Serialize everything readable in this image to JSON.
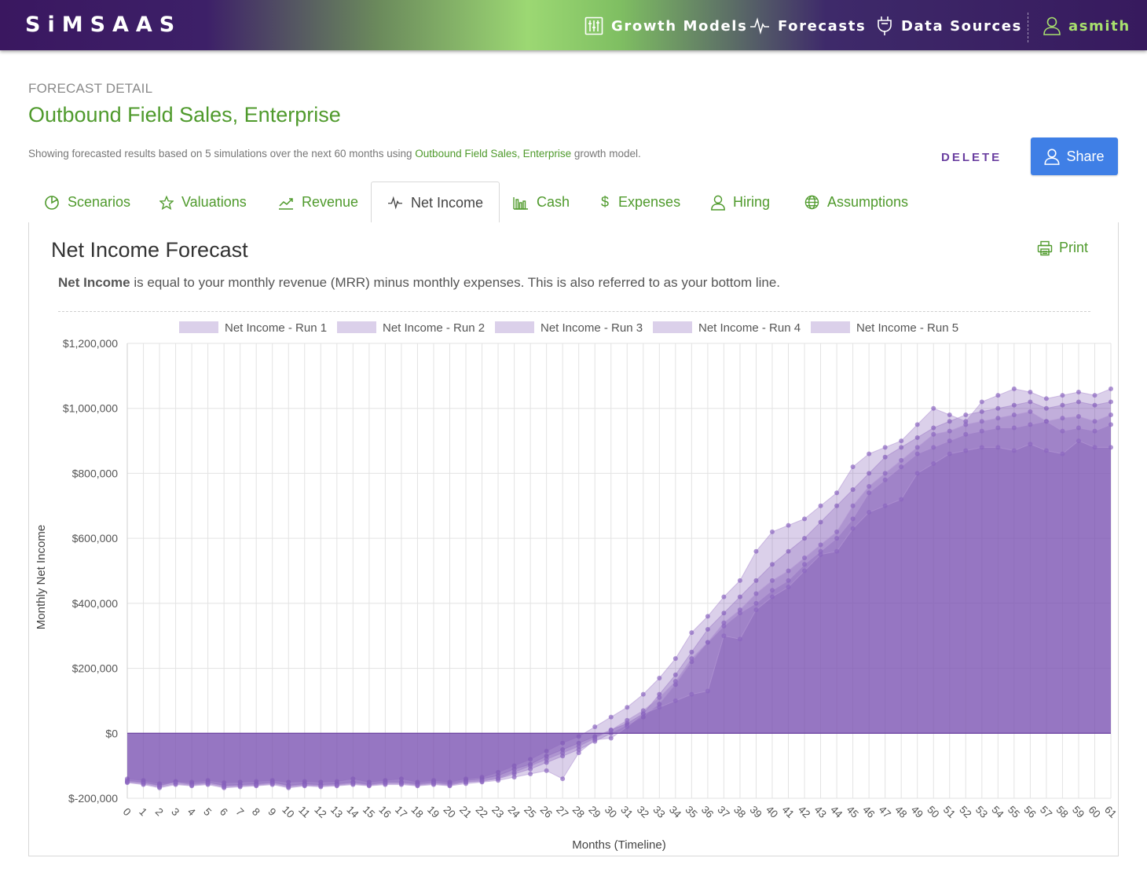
{
  "nav": {
    "logo": "SiMSAAS",
    "items": [
      {
        "label": "Growth Models",
        "icon": "sliders-icon"
      },
      {
        "label": "Forecasts",
        "icon": "pulse-icon"
      },
      {
        "label": "Data Sources",
        "icon": "plug-icon"
      }
    ],
    "user": "asmith"
  },
  "header": {
    "crumb": "FORECAST DETAIL",
    "title": "Outbound Field Sales, Enterprise",
    "subtitle_pre": "Showing forecasted results based on 5 simulations over the next 60 months using ",
    "subtitle_link": "Outbound Field Sales, Enterprise",
    "subtitle_post": " growth model.",
    "delete_label": "DELETE",
    "share_label": "Share"
  },
  "tabs": [
    {
      "label": "Scenarios",
      "icon": "pie-icon"
    },
    {
      "label": "Valuations",
      "icon": "star-icon"
    },
    {
      "label": "Revenue",
      "icon": "trend-icon"
    },
    {
      "label": "Net Income",
      "icon": "pulse-icon",
      "active": true
    },
    {
      "label": "Cash",
      "icon": "bar-chart-icon"
    },
    {
      "label": "Expenses",
      "icon": "dollar-icon"
    },
    {
      "label": "Hiring",
      "icon": "user-icon"
    },
    {
      "label": "Assumptions",
      "icon": "globe-icon"
    }
  ],
  "card": {
    "title": "Net Income Forecast",
    "print_label": "Print",
    "desc_bold": "Net Income",
    "desc_rest": " is equal to your monthly revenue (MRR) minus monthly expenses. This is also referred to as your bottom line."
  },
  "colors": {
    "brand_green": "#4f9a2c",
    "accent_purple": "#6a3fa0",
    "share_blue": "#3f7fe6",
    "series_fill": "#7e57b5"
  },
  "chart_data": {
    "type": "area",
    "xlabel": "Months (Timeline)",
    "ylabel": "Monthly Net Income",
    "ylim": [
      -200000,
      1200000
    ],
    "yticks": [
      -200000,
      0,
      200000,
      400000,
      600000,
      800000,
      1000000,
      1200000
    ],
    "ytick_labels": [
      "$-200,000",
      "$0",
      "$200,000",
      "$400,000",
      "$600,000",
      "$800,000",
      "$1,000,000",
      "$1,200,000"
    ],
    "x": [
      0,
      1,
      2,
      3,
      4,
      5,
      6,
      7,
      8,
      9,
      10,
      11,
      12,
      13,
      14,
      15,
      16,
      17,
      18,
      19,
      20,
      21,
      22,
      23,
      24,
      25,
      26,
      27,
      28,
      29,
      30,
      31,
      32,
      33,
      34,
      35,
      36,
      37,
      38,
      39,
      40,
      41,
      42,
      43,
      44,
      45,
      46,
      47,
      48,
      49,
      50,
      51,
      52,
      53,
      54,
      55,
      56,
      57,
      58,
      59,
      60,
      61
    ],
    "grid": true,
    "legend_position": "top",
    "series": [
      {
        "name": "Net Income - Run 1",
        "values": [
          -145000,
          -150000,
          -160000,
          -150000,
          -155000,
          -150000,
          -160000,
          -158000,
          -155000,
          -150000,
          -160000,
          -155000,
          -158000,
          -155000,
          -150000,
          -158000,
          -150000,
          -150000,
          -155000,
          -150000,
          -155000,
          -145000,
          -140000,
          -130000,
          -110000,
          -95000,
          -70000,
          -50000,
          -30000,
          -10000,
          10000,
          30000,
          60000,
          120000,
          180000,
          250000,
          320000,
          370000,
          420000,
          470000,
          520000,
          560000,
          600000,
          650000,
          700000,
          750000,
          800000,
          850000,
          880000,
          910000,
          940000,
          960000,
          980000,
          990000,
          1000000,
          1010000,
          1020000,
          1000000,
          1010000,
          1020000,
          1010000,
          1020000
        ]
      },
      {
        "name": "Net Income - Run 2",
        "values": [
          -140000,
          -145000,
          -155000,
          -148000,
          -150000,
          -145000,
          -152000,
          -150000,
          -148000,
          -145000,
          -150000,
          -148000,
          -150000,
          -148000,
          -140000,
          -150000,
          -145000,
          -140000,
          -150000,
          -145000,
          -150000,
          -140000,
          -135000,
          -120000,
          -100000,
          -80000,
          -55000,
          -30000,
          -10000,
          20000,
          50000,
          80000,
          120000,
          170000,
          230000,
          310000,
          360000,
          420000,
          470000,
          560000,
          620000,
          640000,
          660000,
          700000,
          740000,
          820000,
          860000,
          880000,
          900000,
          950000,
          1000000,
          980000,
          960000,
          1020000,
          1040000,
          1060000,
          1050000,
          1030000,
          1040000,
          1050000,
          1040000,
          1060000
        ]
      },
      {
        "name": "Net Income - Run 3",
        "values": [
          -150000,
          -155000,
          -165000,
          -155000,
          -160000,
          -155000,
          -165000,
          -162000,
          -160000,
          -155000,
          -165000,
          -160000,
          -162000,
          -160000,
          -155000,
          -160000,
          -155000,
          -155000,
          -160000,
          -155000,
          -160000,
          -150000,
          -148000,
          -140000,
          -125000,
          -110000,
          -90000,
          -70000,
          -50000,
          -25000,
          0,
          25000,
          50000,
          90000,
          150000,
          220000,
          280000,
          340000,
          380000,
          430000,
          470000,
          500000,
          540000,
          580000,
          620000,
          700000,
          760000,
          800000,
          840000,
          880000,
          920000,
          930000,
          950000,
          960000,
          970000,
          980000,
          990000,
          960000,
          970000,
          975000,
          960000,
          980000
        ]
      },
      {
        "name": "Net Income - Run 4",
        "values": [
          -148000,
          -152000,
          -162000,
          -150000,
          -158000,
          -152000,
          -162000,
          -160000,
          -158000,
          -152000,
          -162000,
          -158000,
          -160000,
          -158000,
          -152000,
          -158000,
          -152000,
          -152000,
          -158000,
          -152000,
          -158000,
          -150000,
          -145000,
          -138000,
          -120000,
          -100000,
          -80000,
          -60000,
          -40000,
          -15000,
          10000,
          40000,
          70000,
          110000,
          160000,
          230000,
          280000,
          330000,
          370000,
          400000,
          440000,
          470000,
          520000,
          560000,
          600000,
          660000,
          740000,
          780000,
          820000,
          860000,
          880000,
          900000,
          920000,
          930000,
          940000,
          940000,
          950000,
          960000,
          930000,
          940000,
          930000,
          950000
        ]
      },
      {
        "name": "Net Income - Run 5",
        "values": [
          -152000,
          -158000,
          -168000,
          -158000,
          -162000,
          -158000,
          -168000,
          -165000,
          -162000,
          -158000,
          -168000,
          -162000,
          -165000,
          -162000,
          -158000,
          -162000,
          -158000,
          -158000,
          -162000,
          -158000,
          -162000,
          -155000,
          -150000,
          -145000,
          -135000,
          -125000,
          -115000,
          -140000,
          -60000,
          -20000,
          -15000,
          20000,
          60000,
          80000,
          100000,
          120000,
          130000,
          300000,
          290000,
          380000,
          420000,
          450000,
          500000,
          550000,
          560000,
          630000,
          680000,
          700000,
          720000,
          800000,
          830000,
          860000,
          870000,
          880000,
          880000,
          870000,
          890000,
          870000,
          860000,
          900000,
          880000,
          880000
        ]
      }
    ]
  }
}
